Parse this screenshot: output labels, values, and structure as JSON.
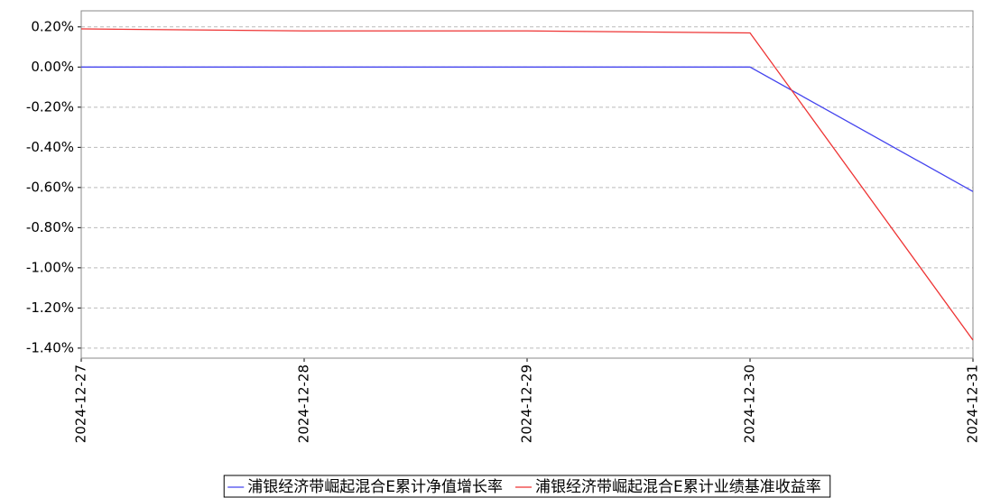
{
  "chart_data": {
    "type": "line",
    "categories": [
      "2024-12-27",
      "2024-12-28",
      "2024-12-29",
      "2024-12-30",
      "2024-12-31"
    ],
    "series": [
      {
        "name": "浦银经济带崛起混合E累计净值增长率",
        "color": "#4444ee",
        "values": [
          0,
          0,
          0,
          0,
          -0.62
        ]
      },
      {
        "name": "浦银经济带崛起混合E累计业绩基准收益率",
        "color": "#ee3333",
        "values": [
          0.19,
          0.18,
          0.18,
          0.17,
          -1.36
        ]
      }
    ],
    "ylim": [
      -1.45,
      0.28
    ],
    "yticks": [
      {
        "value": 0.2,
        "label": "0.20%"
      },
      {
        "value": 0,
        "label": "0.00%"
      },
      {
        "value": -0.2,
        "label": "-0.20%"
      },
      {
        "value": -0.4,
        "label": "-0.40%"
      },
      {
        "value": -0.6,
        "label": "-0.60%"
      },
      {
        "value": -0.8,
        "label": "-0.80%"
      },
      {
        "value": -1.0,
        "label": "-1.00%"
      },
      {
        "value": -1.2,
        "label": "-1.20%"
      },
      {
        "value": -1.4,
        "label": "-1.40%"
      }
    ],
    "grid": true,
    "legend": "bottom"
  }
}
